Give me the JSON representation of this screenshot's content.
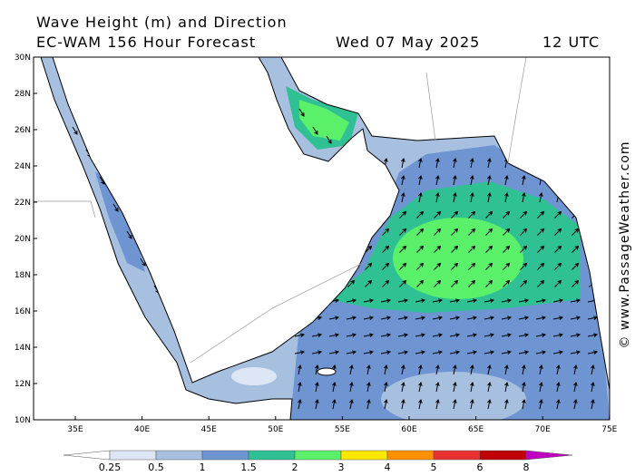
{
  "header": {
    "title": "Wave Height (m) and Direction",
    "model": "EC-WAM 156 Hour Forecast",
    "date": "Wed 07 May 2025",
    "time": "12 UTC"
  },
  "map": {
    "lat_labels": [
      "30N",
      "28N",
      "26N",
      "24N",
      "22N",
      "20N",
      "18N",
      "16N",
      "14N",
      "12N",
      "10N"
    ],
    "lon_labels": [
      "35E",
      "40E",
      "45E",
      "50E",
      "55E",
      "60E",
      "65E",
      "70E",
      "75E"
    ]
  },
  "legend": {
    "labels": [
      "0.25",
      "0.5",
      "1",
      "1.5",
      "2",
      "3",
      "4",
      "5",
      "6",
      "8"
    ],
    "colors": [
      "#ffffff",
      "#dce6f5",
      "#a8c0e0",
      "#6e94d2",
      "#2fc094",
      "#5bf06a",
      "#ffe800",
      "#ff9000",
      "#e83030",
      "#c00000",
      "#c000c0"
    ]
  },
  "credit": "© www.PassageWeather.com"
}
